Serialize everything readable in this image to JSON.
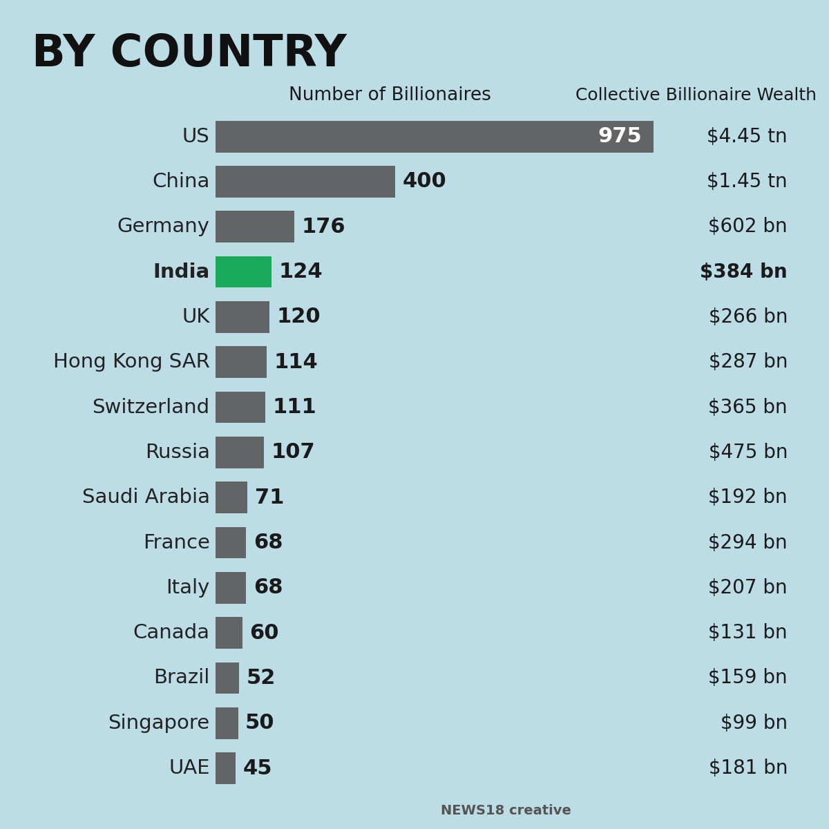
{
  "chart_data": {
    "type": "bar",
    "orientation": "horizontal",
    "title": "BY COUNTRY",
    "value_header": "Number of Billionaires",
    "wealth_header": "Collective Billionaire Wealth",
    "categories": [
      "US",
      "China",
      "Germany",
      "India",
      "UK",
      "Hong Kong SAR",
      "Switzerland",
      "Russia",
      "Saudi Arabia",
      "France",
      "Italy",
      "Canada",
      "Brazil",
      "Singapore",
      "UAE"
    ],
    "values": [
      975,
      400,
      176,
      124,
      120,
      114,
      111,
      107,
      71,
      68,
      68,
      60,
      52,
      50,
      45
    ],
    "wealth": [
      "$4.45 tn",
      "$1.45 tn",
      "$602 bn",
      "$384 bn",
      "$266 bn",
      "$287 bn",
      "$365 bn",
      "$475 bn",
      "$192 bn",
      "$294 bn",
      "$207 bn",
      "$131 bn",
      "$159 bn",
      "$99 bn",
      "$181 bn"
    ],
    "colors": [
      "#636466",
      "#636466",
      "#636466",
      "#1aa85a",
      "#636466",
      "#636466",
      "#636466",
      "#636466",
      "#636466",
      "#636466",
      "#636466",
      "#636466",
      "#636466",
      "#636466",
      "#636466"
    ],
    "xlim": [
      0,
      1070
    ],
    "data_labels": true,
    "tick_labels": false,
    "grid": false,
    "source": "NEWS18 creative"
  }
}
